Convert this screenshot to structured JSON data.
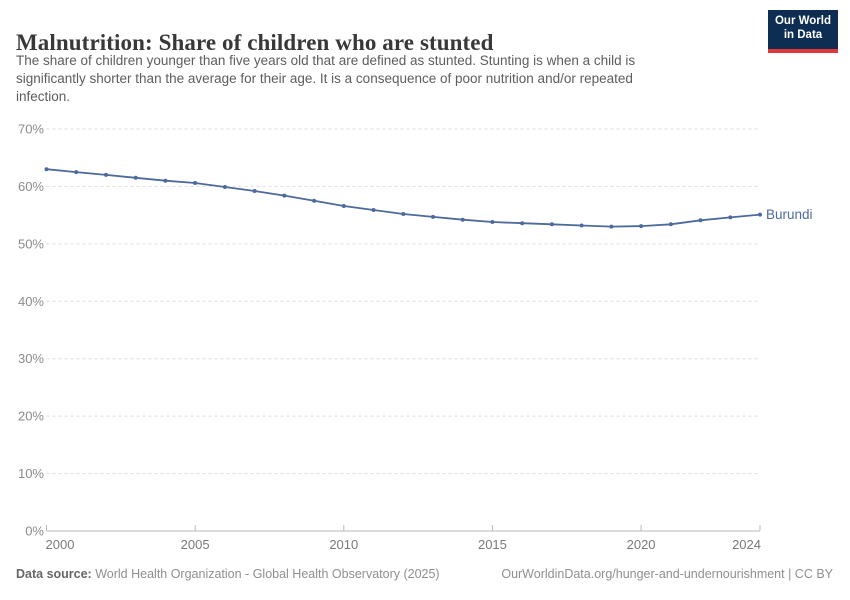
{
  "header": {
    "title": "Malnutrition: Share of children who are stunted",
    "subtitle_lines": [
      "The share of children younger than five years old that are defined as stunted. Stunting is when a child is",
      "significantly shorter than the average for their age. It is a consequence of poor nutrition and/or repeated",
      "infection."
    ]
  },
  "logo": {
    "line1": "Our World",
    "line2": "in Data",
    "bg_color": "#0d2d52",
    "stripe_color": "#e0373a"
  },
  "chart_data": {
    "type": "line",
    "title": "Malnutrition: Share of children who are stunted",
    "x": [
      2000,
      2001,
      2002,
      2003,
      2004,
      2005,
      2006,
      2007,
      2008,
      2009,
      2010,
      2011,
      2012,
      2013,
      2014,
      2015,
      2016,
      2017,
      2018,
      2019,
      2020,
      2021,
      2022,
      2023,
      2024
    ],
    "series": [
      {
        "name": "Burundi",
        "color": "#4c6a9c",
        "values": [
          63.0,
          62.5,
          62.0,
          61.5,
          61.0,
          60.6,
          59.9,
          59.2,
          58.4,
          57.5,
          56.6,
          55.9,
          55.2,
          54.7,
          54.2,
          53.8,
          53.6,
          53.4,
          53.2,
          53.0,
          53.1,
          53.4,
          54.1,
          54.6,
          55.1
        ]
      }
    ],
    "xlabel": "",
    "ylabel": "",
    "ylim": [
      0,
      70
    ],
    "yticks": [
      0,
      10,
      20,
      30,
      40,
      50,
      60,
      70
    ],
    "ytick_suffix": "%",
    "xticks": [
      2000,
      2005,
      2010,
      2015,
      2020,
      2024
    ],
    "grid": "horizontal-dashed",
    "legend_position": "line-end-label",
    "colors": {
      "gridline": "#dcdcdc",
      "axis_line": "#b9b9b9",
      "ytick_label": "#8b8b8b",
      "xtick_label": "#7a7a7a"
    }
  },
  "footer": {
    "datasource_label": "Data source:",
    "datasource_value": "World Health Organization - Global Health Observatory (2025)",
    "credit": "OurWorldinData.org/hunger-and-undernourishment | CC BY"
  }
}
